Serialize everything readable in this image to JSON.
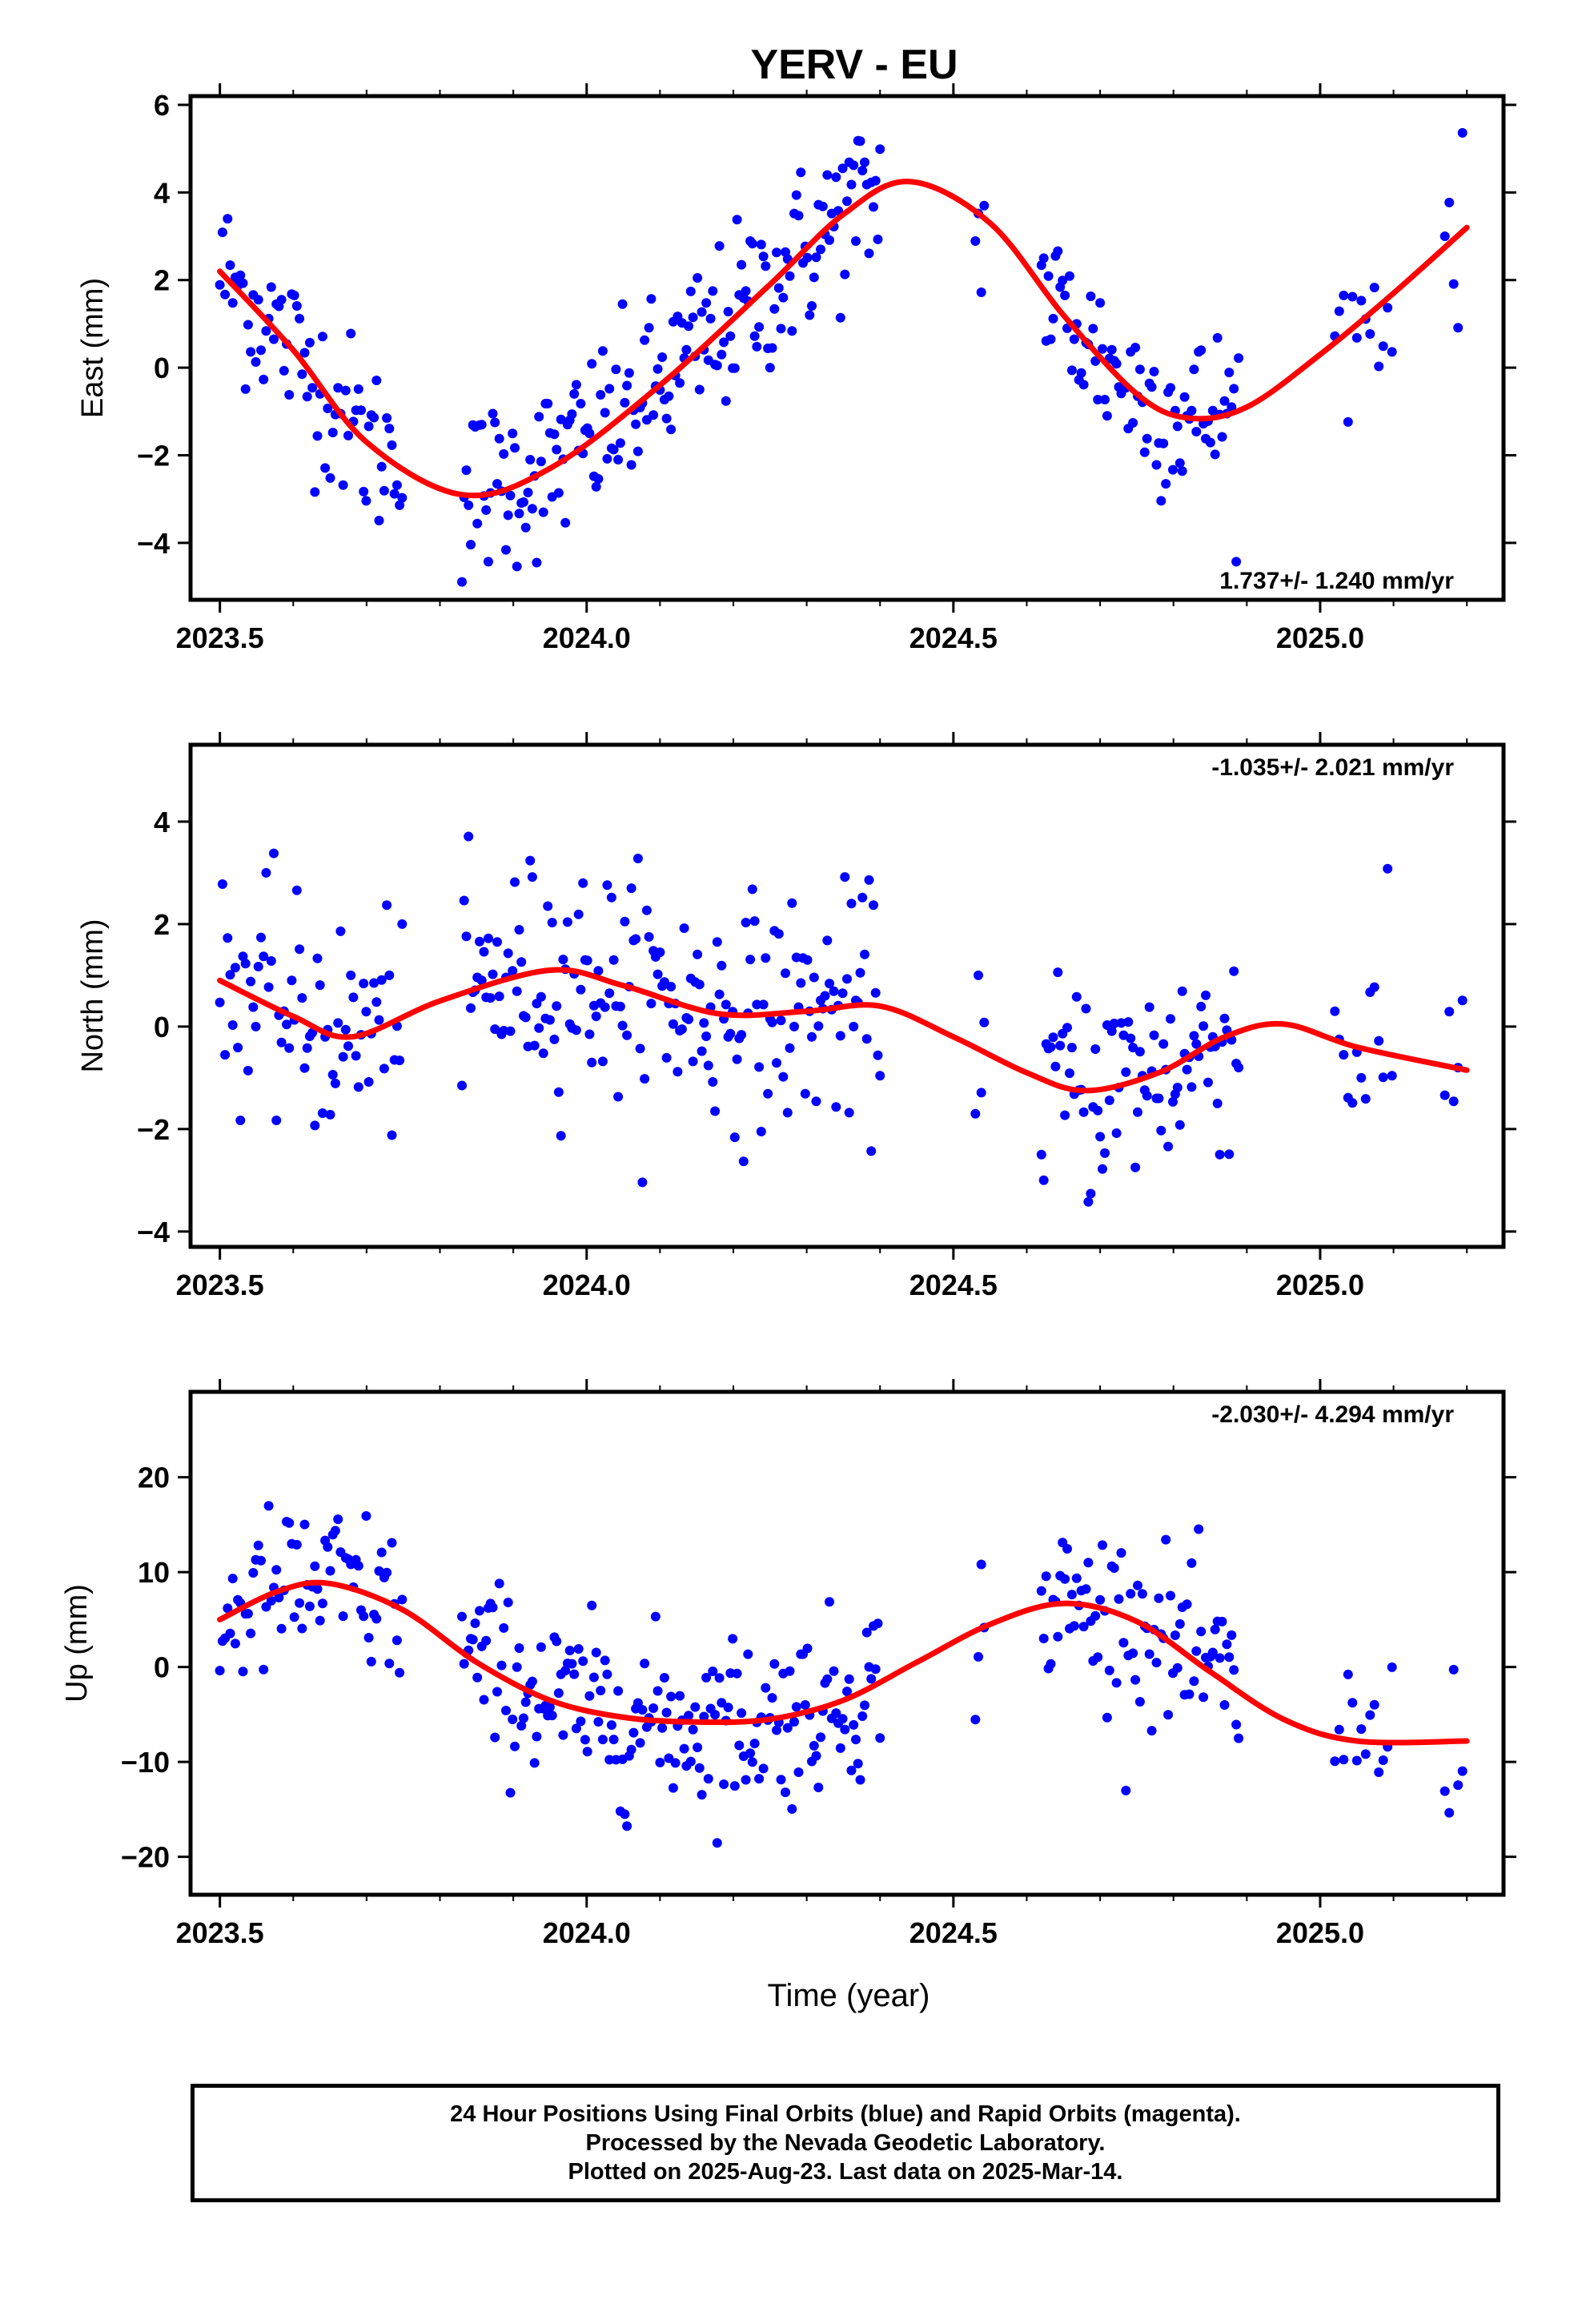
{
  "chart_data": [
    {
      "type": "scatter",
      "title": "YERV - EU",
      "ylabel": "East (mm)",
      "rate_label": "1.737+/- 1.240 mm/yr",
      "xlim": [
        2023.46,
        2025.25
      ],
      "ylim": [
        -5.3,
        6.2
      ],
      "x_ticks": [
        2023.5,
        2024.0,
        2024.5,
        2025.0
      ],
      "x_tick_labels": [
        "2023.5",
        "2024.0",
        "2024.5",
        "2025.0"
      ],
      "y_ticks": [
        -4,
        -2,
        0,
        2,
        4,
        6
      ],
      "y_tick_labels": [
        "−4",
        "−2",
        "0",
        "2",
        "4",
        "6"
      ],
      "series": [
        {
          "color": "#0000ff",
          "kind": "points",
          "x": [],
          "y": []
        },
        {
          "color": "#ff0000",
          "kind": "line",
          "x": [
            2023.5,
            2023.6,
            2023.7,
            2023.83,
            2023.95,
            2024.1,
            2024.25,
            2024.35,
            2024.44,
            2024.55,
            2024.65,
            2024.75,
            2024.82,
            2024.9,
            2025.0,
            2025.1,
            2025.2
          ],
          "y": [
            2.2,
            0.4,
            -1.7,
            -2.9,
            -2.3,
            -0.4,
            1.9,
            3.5,
            4.25,
            3.3,
            1.2,
            -0.6,
            -1.15,
            -0.9,
            0.3,
            1.7,
            3.2
          ]
        }
      ]
    },
    {
      "type": "scatter",
      "ylabel": "North (mm)",
      "rate_label": "-1.035+/- 2.021 mm/yr",
      "xlim": [
        2023.46,
        2025.25
      ],
      "ylim": [
        -4.3,
        5.5
      ],
      "x_ticks": [
        2023.5,
        2024.0,
        2024.5,
        2025.0
      ],
      "x_tick_labels": [
        "2023.5",
        "2024.0",
        "2024.5",
        "2025.0"
      ],
      "y_ticks": [
        -4,
        -2,
        0,
        2,
        4
      ],
      "y_tick_labels": [
        "−4",
        "−2",
        "0",
        "2",
        "4"
      ],
      "series": [
        {
          "color": "#0000ff",
          "kind": "points",
          "x": [],
          "y": []
        },
        {
          "color": "#ff0000",
          "kind": "line",
          "x": [
            2023.5,
            2023.6,
            2023.68,
            2023.8,
            2023.95,
            2024.05,
            2024.18,
            2024.3,
            2024.4,
            2024.5,
            2024.6,
            2024.68,
            2024.78,
            2024.87,
            2024.95,
            2025.05,
            2025.2
          ],
          "y": [
            0.9,
            0.2,
            -0.2,
            0.5,
            1.1,
            0.8,
            0.25,
            0.3,
            0.4,
            -0.2,
            -0.9,
            -1.25,
            -0.9,
            -0.2,
            0.05,
            -0.4,
            -0.85
          ]
        }
      ]
    },
    {
      "type": "scatter",
      "ylabel": "Up (mm)",
      "rate_label": "-2.030+/- 4.294 mm/yr",
      "xlabel": "Time (year)",
      "xlim": [
        2023.46,
        2025.25
      ],
      "ylim": [
        -24,
        29
      ],
      "x_ticks": [
        2023.5,
        2024.0,
        2024.5,
        2025.0
      ],
      "x_tick_labels": [
        "2023.5",
        "2024.0",
        "2024.5",
        "2025.0"
      ],
      "y_ticks": [
        -20,
        -10,
        0,
        10,
        20
      ],
      "y_tick_labels": [
        "−20",
        "−10",
        "0",
        "10",
        "20"
      ],
      "series": [
        {
          "color": "#0000ff",
          "kind": "points",
          "x": [],
          "y": []
        },
        {
          "color": "#ff0000",
          "kind": "line",
          "x": [
            2023.5,
            2023.58,
            2023.65,
            2023.75,
            2023.85,
            2023.95,
            2024.05,
            2024.15,
            2024.25,
            2024.35,
            2024.45,
            2024.55,
            2024.65,
            2024.75,
            2024.85,
            2024.95,
            2025.05,
            2025.2
          ],
          "y": [
            5,
            8,
            8.8,
            6,
            0.5,
            -3.5,
            -5.3,
            -5.8,
            -5.5,
            -3.5,
            0.5,
            4.5,
            6.7,
            4.8,
            -0.5,
            -5.5,
            -7.8,
            -7.8
          ]
        }
      ]
    }
  ],
  "caption": {
    "line1": "24 Hour Positions Using Final Orbits (blue) and Rapid Orbits (magenta).",
    "line2": "Processed by the Nevada Geodetic Laboratory.",
    "line3": "Plotted on 2025-Aug-23. Last data on 2025-Mar-14."
  }
}
